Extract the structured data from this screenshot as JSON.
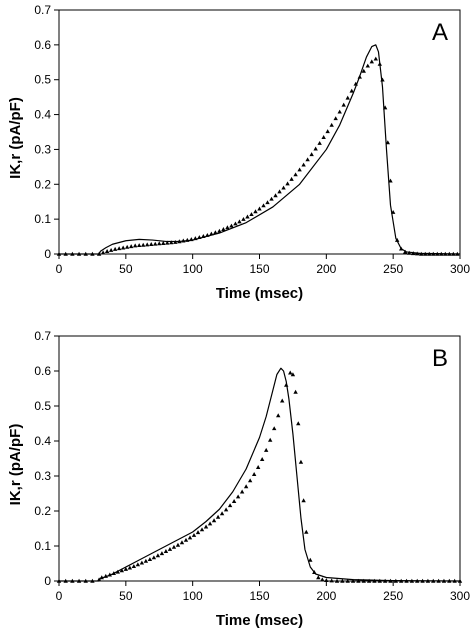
{
  "chart_data": [
    {
      "type": "line",
      "panel_label": "A",
      "xlabel": "Time (msec)",
      "ylabel": "IK,r (pA/pF)",
      "xlim": [
        0,
        300
      ],
      "ylim": [
        0,
        0.7
      ],
      "xticks": [
        "0",
        "50",
        "100",
        "150",
        "200",
        "250",
        "300"
      ],
      "yticks": [
        "0",
        "0.1",
        "0.2",
        "0.3",
        "0.4",
        "0.5",
        "0.6",
        "0.7"
      ],
      "grid": false,
      "series": [
        {
          "style": "solid line",
          "x": [
            0,
            30,
            31,
            35,
            40,
            50,
            60,
            70,
            80,
            90,
            100,
            120,
            140,
            160,
            180,
            200,
            210,
            220,
            225,
            230,
            234,
            237,
            239,
            242,
            245,
            248,
            252,
            256,
            260,
            270,
            300
          ],
          "y": [
            0,
            0,
            0.008,
            0.018,
            0.028,
            0.038,
            0.042,
            0.04,
            0.036,
            0.036,
            0.04,
            0.06,
            0.09,
            0.135,
            0.2,
            0.3,
            0.37,
            0.46,
            0.51,
            0.565,
            0.595,
            0.6,
            0.58,
            0.48,
            0.3,
            0.14,
            0.045,
            0.015,
            0.006,
            0.002,
            0
          ]
        },
        {
          "style": "triangle markers",
          "x": [
            0,
            5,
            10,
            15,
            20,
            25,
            30,
            33,
            36,
            39,
            42,
            45,
            48,
            51,
            54,
            57,
            60,
            63,
            66,
            69,
            72,
            75,
            78,
            81,
            84,
            87,
            90,
            93,
            96,
            99,
            102,
            105,
            108,
            111,
            114,
            117,
            120,
            123,
            126,
            129,
            132,
            135,
            138,
            141,
            144,
            147,
            150,
            153,
            156,
            159,
            162,
            165,
            168,
            171,
            174,
            177,
            180,
            183,
            186,
            189,
            192,
            195,
            198,
            201,
            204,
            207,
            210,
            213,
            216,
            219,
            222,
            225,
            228,
            231,
            234,
            237,
            240,
            242,
            244,
            246,
            248,
            250,
            253,
            256,
            259,
            262,
            265,
            268,
            271,
            274,
            277,
            280,
            283,
            286,
            289,
            292,
            295,
            298
          ],
          "y": [
            0,
            0,
            0,
            0,
            0,
            0,
            0,
            0.004,
            0.008,
            0.011,
            0.014,
            0.016,
            0.018,
            0.02,
            0.022,
            0.024,
            0.025,
            0.026,
            0.027,
            0.028,
            0.029,
            0.03,
            0.031,
            0.032,
            0.033,
            0.034,
            0.036,
            0.038,
            0.04,
            0.042,
            0.045,
            0.048,
            0.051,
            0.054,
            0.058,
            0.062,
            0.066,
            0.071,
            0.076,
            0.081,
            0.087,
            0.093,
            0.1,
            0.107,
            0.114,
            0.122,
            0.13,
            0.139,
            0.148,
            0.158,
            0.168,
            0.179,
            0.19,
            0.202,
            0.215,
            0.228,
            0.242,
            0.256,
            0.271,
            0.286,
            0.302,
            0.318,
            0.335,
            0.352,
            0.37,
            0.389,
            0.408,
            0.428,
            0.448,
            0.468,
            0.488,
            0.508,
            0.525,
            0.54,
            0.552,
            0.56,
            0.545,
            0.5,
            0.42,
            0.32,
            0.21,
            0.12,
            0.04,
            0.015,
            0.006,
            0.003,
            0.002,
            0.001,
            0,
            0,
            0,
            0,
            0,
            0,
            0,
            0,
            0,
            0
          ]
        }
      ]
    },
    {
      "type": "line",
      "panel_label": "B",
      "xlabel": "Time (msec)",
      "ylabel": "IK,r (pA/pF)",
      "xlim": [
        0,
        300
      ],
      "ylim": [
        0,
        0.7
      ],
      "xticks": [
        "0",
        "50",
        "100",
        "150",
        "200",
        "250",
        "300"
      ],
      "yticks": [
        "0",
        "0.1",
        "0.2",
        "0.3",
        "0.4",
        "0.5",
        "0.6",
        "0.7"
      ],
      "grid": false,
      "series": [
        {
          "style": "solid line",
          "x": [
            0,
            30,
            31,
            35,
            40,
            50,
            60,
            80,
            100,
            110,
            120,
            130,
            140,
            150,
            155,
            160,
            163,
            166,
            168,
            170,
            172,
            175,
            178,
            181,
            184,
            188,
            192,
            200,
            220,
            250,
            300
          ],
          "y": [
            0,
            0,
            0.008,
            0.012,
            0.02,
            0.04,
            0.06,
            0.1,
            0.14,
            0.17,
            0.205,
            0.255,
            0.32,
            0.41,
            0.47,
            0.545,
            0.59,
            0.608,
            0.6,
            0.57,
            0.52,
            0.42,
            0.3,
            0.18,
            0.09,
            0.04,
            0.02,
            0.01,
            0.004,
            0.001,
            0
          ]
        },
        {
          "style": "triangle markers",
          "x": [
            0,
            5,
            10,
            15,
            20,
            25,
            30,
            32,
            35,
            38,
            41,
            44,
            47,
            50,
            53,
            56,
            59,
            62,
            65,
            68,
            71,
            74,
            77,
            80,
            83,
            86,
            89,
            92,
            95,
            98,
            101,
            104,
            107,
            110,
            113,
            116,
            119,
            122,
            125,
            128,
            131,
            134,
            137,
            140,
            143,
            146,
            149,
            152,
            155,
            158,
            161,
            164,
            167,
            170,
            173,
            175,
            177,
            179,
            181,
            183,
            185,
            188,
            191,
            194,
            197,
            200,
            204,
            208,
            212,
            216,
            220,
            224,
            228,
            232,
            236,
            240,
            244,
            248,
            252,
            256,
            260,
            264,
            268,
            272,
            276,
            280,
            284,
            288,
            292,
            296,
            300
          ],
          "y": [
            0,
            0,
            0,
            0,
            0,
            0,
            0.004,
            0.01,
            0.014,
            0.018,
            0.022,
            0.026,
            0.03,
            0.034,
            0.038,
            0.042,
            0.047,
            0.052,
            0.057,
            0.062,
            0.067,
            0.073,
            0.079,
            0.085,
            0.091,
            0.097,
            0.103,
            0.11,
            0.117,
            0.124,
            0.131,
            0.139,
            0.147,
            0.155,
            0.164,
            0.173,
            0.183,
            0.193,
            0.204,
            0.216,
            0.228,
            0.241,
            0.255,
            0.27,
            0.287,
            0.305,
            0.325,
            0.348,
            0.374,
            0.403,
            0.436,
            0.473,
            0.515,
            0.56,
            0.595,
            0.59,
            0.54,
            0.45,
            0.34,
            0.23,
            0.14,
            0.06,
            0.025,
            0.01,
            0.004,
            0.002,
            0.001,
            0,
            0,
            0,
            0,
            0,
            0,
            0,
            0,
            0,
            0,
            0,
            0,
            0,
            0,
            0,
            0,
            0,
            0,
            0,
            0,
            0,
            0,
            0,
            0
          ]
        }
      ]
    }
  ]
}
